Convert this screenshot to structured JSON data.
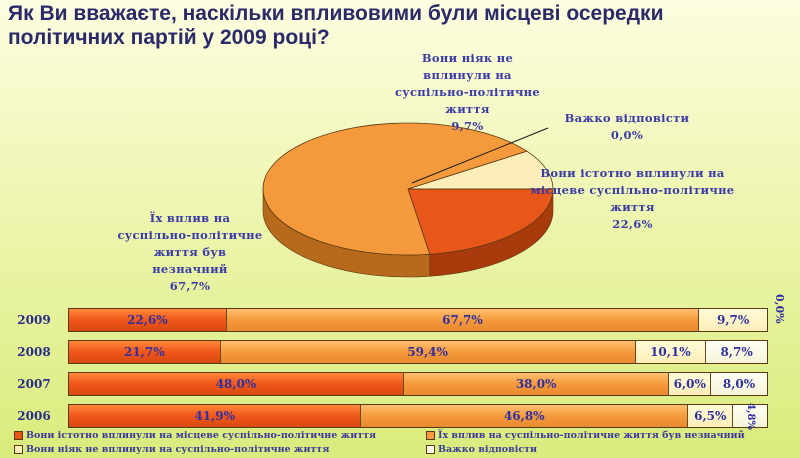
{
  "title": {
    "line1": "Як Ви вважаєте, наскільки впливовими були місцеві осередки",
    "line2": "політичних партій у 2009 році?"
  },
  "colors": {
    "significant": "#e8561a",
    "insignificant": "#f59a3c",
    "none": "#fbeeb8",
    "hard": "#f8f6e4"
  },
  "chart_data": [
    {
      "type": "pie",
      "slices": [
        {
          "label": "Вони істотно вплинули на місцеве суспільно-політичне життя",
          "value": 22.6,
          "value_label": "22,6%"
        },
        {
          "label": "Їх вплив на суспільно-політичне життя був незначний",
          "value": 67.7,
          "value_label": "67,7%"
        },
        {
          "label": "Вони ніяк не вплинули на суспільно-політичне життя",
          "value": 9.7,
          "value_label": "9,7%"
        },
        {
          "label": "Важко відповісти",
          "value": 0.0,
          "value_label": "0,0%"
        }
      ]
    },
    {
      "type": "bar",
      "orientation": "horizontal",
      "stacked": true,
      "categories": [
        "2009",
        "2008",
        "2007",
        "2006"
      ],
      "series": [
        {
          "name": "Вони істотно вплинули на місцеве суспільно-політичне життя",
          "values": [
            22.6,
            21.7,
            48.0,
            41.9
          ],
          "labels": [
            "22,6%",
            "21,7%",
            "48,0%",
            "41,9%"
          ]
        },
        {
          "name": "Їх вплив на суспільно-політичне життя був незначний",
          "values": [
            67.7,
            59.4,
            38.0,
            46.8
          ],
          "labels": [
            "67,7%",
            "59,4%",
            "38,0%",
            "46,8%"
          ]
        },
        {
          "name": "Вони ніяк не вплинули на суспільно-політичне життя",
          "values": [
            9.7,
            10.1,
            6.0,
            6.5
          ],
          "labels": [
            "9,7%",
            "10,1%",
            "6,0%",
            "6,5%"
          ]
        },
        {
          "name": "Важко відповісти",
          "values": [
            0.0,
            8.7,
            8.0,
            4.8
          ],
          "labels": [
            "0,0%",
            "8,7%",
            "8,0%",
            "4,8%"
          ]
        }
      ]
    }
  ]
}
